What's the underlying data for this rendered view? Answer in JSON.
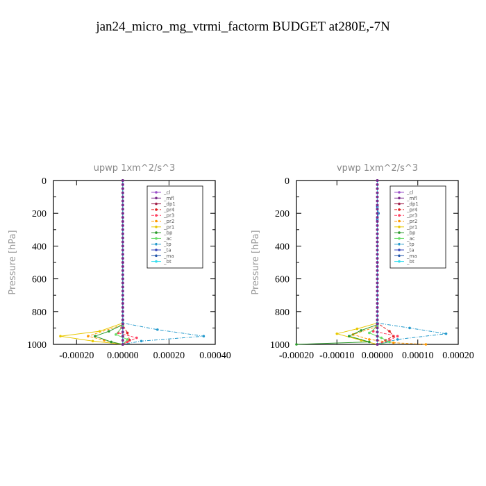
{
  "title": "jan24_micro_mg_vtrmi_factorm  BUDGET at280E,-7N",
  "chart_data": [
    {
      "type": "line",
      "title": "upwp   1xm^2/s^3",
      "ylabel": "Pressure [hPa]",
      "ylim": [
        1000,
        0
      ],
      "xlim": [
        -0.0003,
        0.0004
      ],
      "xticks": [
        "-0.00020",
        "0.00000",
        "0.00020",
        "0.00040"
      ],
      "xtick_values": [
        -0.0002,
        0,
        0.0002,
        0.0004
      ],
      "yticks": [
        "0",
        "200",
        "400",
        "600",
        "800",
        "1000"
      ],
      "ytick_values": [
        0,
        200,
        400,
        600,
        800,
        1000
      ],
      "legend_position": "top-right",
      "series": [
        {
          "name": "_cl",
          "color": "#9a4dc8",
          "x": [
            0,
            0,
            0,
            0,
            0
          ],
          "y": [
            0,
            500,
            850,
            950,
            1000
          ]
        },
        {
          "name": "_mfl",
          "color": "#7a2a8a",
          "x": [
            0,
            0,
            0,
            0,
            0
          ],
          "y": [
            0,
            500,
            850,
            950,
            1000
          ]
        },
        {
          "name": "_dp1",
          "color": "#a0204a",
          "x": [
            0,
            0,
            0,
            0,
            0
          ],
          "y": [
            0,
            500,
            850,
            950,
            1000
          ]
        },
        {
          "name": "_pr4",
          "color": "#e02020",
          "x": [
            0,
            0,
            2e-05,
            3e-05,
            0
          ],
          "y": [
            0,
            880,
            930,
            975,
            1000
          ]
        },
        {
          "name": "_pr3",
          "color": "#ff4060",
          "x": [
            0,
            0,
            -2e-05,
            6e-05,
            2e-05,
            0
          ],
          "y": [
            0,
            870,
            930,
            960,
            985,
            1000
          ]
        },
        {
          "name": "_pr2",
          "color": "#ff9900",
          "x": [
            0,
            0,
            -0.00015,
            -8e-05,
            0
          ],
          "y": [
            0,
            880,
            950,
            975,
            1000
          ]
        },
        {
          "name": "_pr1",
          "color": "#e8c800",
          "x": [
            0,
            0,
            -0.0001,
            -0.00027,
            -0.00013,
            0
          ],
          "y": [
            0,
            870,
            920,
            950,
            980,
            1000
          ]
        },
        {
          "name": "_bp",
          "color": "#2a9a2a",
          "x": [
            0,
            0,
            -6e-05,
            -0.00012,
            -5e-05,
            0
          ],
          "y": [
            0,
            880,
            920,
            950,
            985,
            1000
          ]
        },
        {
          "name": "_ac",
          "color": "#66dd66",
          "x": [
            0,
            0,
            -3e-05,
            2e-05,
            0
          ],
          "y": [
            0,
            890,
            940,
            970,
            1000
          ]
        },
        {
          "name": "_tp",
          "color": "#2299cc",
          "x": [
            0,
            0,
            0.00015,
            0.00035,
            8e-05,
            0
          ],
          "y": [
            0,
            870,
            910,
            950,
            980,
            1000
          ]
        },
        {
          "name": "_ta",
          "color": "#3344bb",
          "x": [
            0,
            0,
            0,
            0
          ],
          "y": [
            0,
            600,
            950,
            1000
          ]
        },
        {
          "name": "_ma",
          "color": "#2255aa",
          "x": [
            0,
            0,
            0,
            0
          ],
          "y": [
            0,
            600,
            950,
            1000
          ]
        },
        {
          "name": "_bt",
          "color": "#33ddee",
          "x": [
            0,
            0,
            0,
            0
          ],
          "y": [
            0,
            600,
            950,
            1000
          ]
        }
      ]
    },
    {
      "type": "line",
      "title": "vpwp   1xm^2/s^3",
      "ylabel": "Pressure [hPa]",
      "ylim": [
        1000,
        0
      ],
      "xlim": [
        -0.0002,
        0.0002
      ],
      "xticks": [
        "-0.00020",
        "-0.00010",
        "0.00000",
        "0.00010",
        "0.00020"
      ],
      "xtick_values": [
        -0.0002,
        -0.0001,
        0,
        0.0001,
        0.0002
      ],
      "yticks": [
        "0",
        "200",
        "400",
        "600",
        "800",
        "1000"
      ],
      "ytick_values": [
        0,
        200,
        400,
        600,
        800,
        1000
      ],
      "legend_position": "top-right",
      "series": [
        {
          "name": "_cl",
          "color": "#9a4dc8",
          "x": [
            0,
            0,
            0,
            0,
            0
          ],
          "y": [
            0,
            500,
            850,
            950,
            1000
          ]
        },
        {
          "name": "_mfl",
          "color": "#7a2a8a",
          "x": [
            0,
            0,
            0,
            0,
            0
          ],
          "y": [
            0,
            500,
            850,
            950,
            1000
          ]
        },
        {
          "name": "_dp1",
          "color": "#a0204a",
          "x": [
            0,
            0,
            0,
            0,
            0
          ],
          "y": [
            0,
            500,
            850,
            950,
            1000
          ]
        },
        {
          "name": "_pr4",
          "color": "#e02020",
          "x": [
            0,
            0,
            3e-05,
            4e-05,
            2e-05,
            0
          ],
          "y": [
            0,
            870,
            920,
            950,
            975,
            1000
          ]
        },
        {
          "name": "_pr3",
          "color": "#ff4060",
          "x": [
            0,
            0,
            -1e-05,
            5e-05,
            3e-05,
            0
          ],
          "y": [
            0,
            870,
            920,
            950,
            975,
            1000
          ]
        },
        {
          "name": "_pr2",
          "color": "#ff9900",
          "x": [
            0,
            0,
            -6e-05,
            -2e-05,
            4e-05,
            0.00012
          ],
          "y": [
            0,
            890,
            940,
            970,
            990,
            1000
          ]
        },
        {
          "name": "_pr1",
          "color": "#e8c800",
          "x": [
            0,
            0,
            -5e-05,
            -0.0001,
            -4e-05,
            0
          ],
          "y": [
            0,
            870,
            905,
            935,
            975,
            1000
          ]
        },
        {
          "name": "_bp",
          "color": "#2a9a2a",
          "x": [
            0,
            0,
            -4e-05,
            -7e-05,
            -2e-05,
            -0.0002
          ],
          "y": [
            0,
            880,
            915,
            950,
            985,
            1000
          ]
        },
        {
          "name": "_ac",
          "color": "#66dd66",
          "x": [
            0,
            0,
            -2e-05,
            1e-05,
            3e-05,
            0
          ],
          "y": [
            0,
            890,
            930,
            960,
            985,
            1000
          ]
        },
        {
          "name": "_tp",
          "color": "#2299cc",
          "x": [
            0,
            0,
            8e-05,
            0.00017,
            5e-05,
            0
          ],
          "y": [
            0,
            870,
            900,
            935,
            970,
            1000
          ]
        },
        {
          "name": "_ta",
          "color": "#3344bb",
          "x": [
            0,
            0,
            3e-06,
            0,
            0,
            0
          ],
          "y": [
            0,
            160,
            200,
            240,
            950,
            1000
          ]
        },
        {
          "name": "_ma",
          "color": "#2255aa",
          "x": [
            0,
            0,
            0,
            0
          ],
          "y": [
            0,
            600,
            950,
            1000
          ]
        },
        {
          "name": "_bt",
          "color": "#33ddee",
          "x": [
            0,
            0,
            2e-06,
            0,
            0
          ],
          "y": [
            0,
            170,
            200,
            230,
            1000
          ]
        }
      ]
    }
  ]
}
